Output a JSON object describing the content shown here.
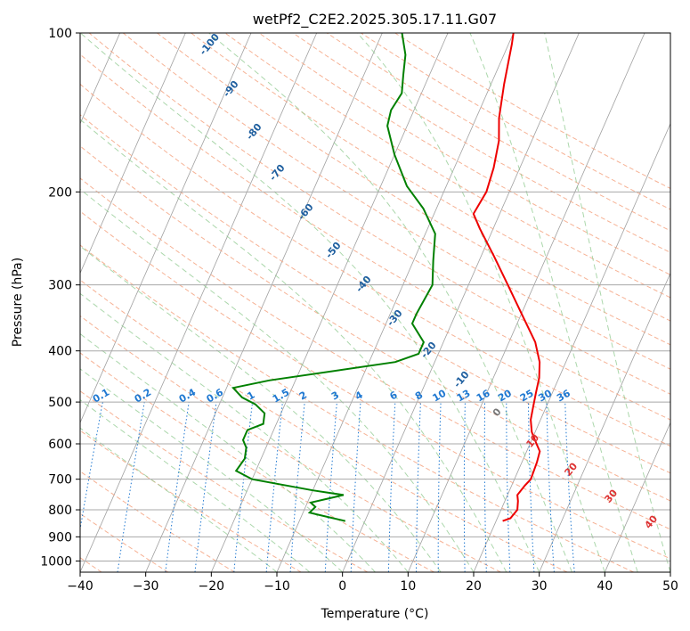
{
  "chart_data": {
    "type": "skewt",
    "title": "wetPf2_C2E2.2025.305.17.11.G07",
    "xlabel": "Temperature (°C)",
    "ylabel": "Pressure (hPa)",
    "xlim": [
      -40,
      50
    ],
    "ylim": [
      1050,
      100
    ],
    "x_ticks": [
      -40,
      -30,
      -20,
      -10,
      0,
      10,
      20,
      30,
      40,
      50
    ],
    "x_tick_labels": [
      "−40",
      "−30",
      "−20",
      "−10",
      "0",
      "10",
      "20",
      "30",
      "40",
      "50"
    ],
    "y_ticks": [
      100,
      200,
      300,
      400,
      500,
      600,
      700,
      800,
      900,
      1000
    ],
    "y_tick_labels": [
      "100",
      "200",
      "300",
      "400",
      "500",
      "600",
      "700",
      "800",
      "900",
      "1000"
    ],
    "grid": true,
    "colors": {
      "temperature": "#ee0000",
      "dewpoint": "#008000",
      "dry_adiabat": "#f4a582",
      "moist_adiabat": "#8fc98f",
      "mixing_ratio": "#1f78d1",
      "isotherm": "#808080",
      "dry_adiabat_labels": "#1f5f9f",
      "moist_adiabat_labels": "#dd3333",
      "mixing_ratio_labels": "#1f78d1"
    },
    "series": [
      {
        "role": "temperature",
        "points": [
          [
            21,
            840
          ],
          [
            22,
            830
          ],
          [
            22.5,
            800
          ],
          [
            22,
            770
          ],
          [
            21.5,
            750
          ],
          [
            22,
            720
          ],
          [
            22.5,
            700
          ],
          [
            22.3,
            650
          ],
          [
            22,
            620
          ],
          [
            21,
            600
          ],
          [
            19.5,
            570
          ],
          [
            18.5,
            540
          ],
          [
            18,
            510
          ],
          [
            17.5,
            480
          ],
          [
            17,
            450
          ],
          [
            16,
            420
          ],
          [
            14,
            385
          ],
          [
            10,
            340
          ],
          [
            6,
            300
          ],
          [
            2,
            265
          ],
          [
            -2,
            235
          ],
          [
            -4,
            220
          ],
          [
            -3.5,
            200
          ],
          [
            -4,
            180
          ],
          [
            -5,
            160
          ],
          [
            -6.5,
            145
          ],
          [
            -8,
            125
          ],
          [
            -9.5,
            105
          ],
          [
            -10,
            100
          ]
        ]
      },
      {
        "role": "dewpoint",
        "points": [
          [
            -3,
            840
          ],
          [
            -7,
            820
          ],
          [
            -9,
            810
          ],
          [
            -8.5,
            790
          ],
          [
            -9.5,
            775
          ],
          [
            -5,
            750
          ],
          [
            -10,
            735
          ],
          [
            -20,
            700
          ],
          [
            -23,
            675
          ],
          [
            -22.5,
            640
          ],
          [
            -23,
            610
          ],
          [
            -24,
            590
          ],
          [
            -24,
            565
          ],
          [
            -22,
            550
          ],
          [
            -22.5,
            525
          ],
          [
            -24.5,
            505
          ],
          [
            -27,
            490
          ],
          [
            -29,
            470
          ],
          [
            -24,
            455
          ],
          [
            -6,
            420
          ],
          [
            -3,
            405
          ],
          [
            -3,
            385
          ],
          [
            -6,
            355
          ],
          [
            -6,
            340
          ],
          [
            -5.5,
            300
          ],
          [
            -7,
            270
          ],
          [
            -8.5,
            240
          ],
          [
            -12,
            215
          ],
          [
            -16,
            195
          ],
          [
            -20,
            170
          ],
          [
            -23,
            150
          ],
          [
            -23.5,
            140
          ],
          [
            -23,
            130
          ],
          [
            -24,
            120
          ],
          [
            -25,
            110
          ],
          [
            -27,
            100
          ]
        ]
      }
    ],
    "dry_adiabat_labels": [
      "-100",
      "-90",
      "-80",
      "-70",
      "-60",
      "-50",
      "-40",
      "-30",
      "-20",
      "-10",
      "0",
      "10",
      "20",
      "30",
      "40"
    ],
    "moist_adiabat_labels": [
      "10",
      "20",
      "30",
      "40"
    ],
    "mixing_ratio_labels": [
      "0.1",
      "0.2",
      "0.4",
      "0.6",
      "1",
      "1.5",
      "2",
      "3",
      "4",
      "6",
      "8",
      "10",
      "13",
      "16",
      "20",
      "25",
      "30",
      "36"
    ]
  }
}
